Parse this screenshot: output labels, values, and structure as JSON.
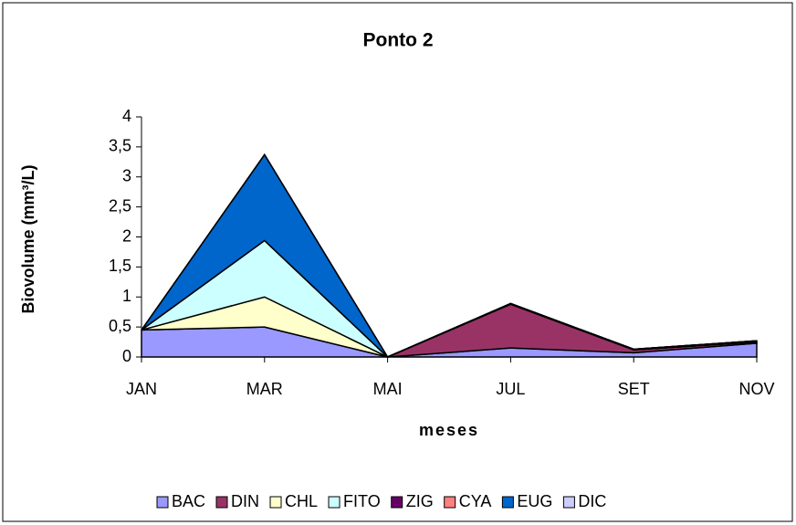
{
  "chart_data": {
    "type": "stacked_area",
    "title": "Ponto 2",
    "x_label": "meses",
    "y_label": "Biovolume (mm³/L)",
    "categories": [
      "JAN",
      "MAR",
      "MAI",
      "JUL",
      "SET",
      "NOV"
    ],
    "series": [
      {
        "name": "BAC",
        "color": "#9999ff",
        "values": [
          0.45,
          0.5,
          0,
          0.15,
          0.07,
          0.23
        ]
      },
      {
        "name": "DIN",
        "color": "#993366",
        "values": [
          0,
          0,
          0,
          0.73,
          0.05,
          0.02
        ]
      },
      {
        "name": "CHL",
        "color": "#ffffcc",
        "values": [
          0,
          0.5,
          0,
          0,
          0,
          0
        ]
      },
      {
        "name": "FITO",
        "color": "#ccffff",
        "values": [
          0,
          0.94,
          0,
          0,
          0,
          0
        ]
      },
      {
        "name": "ZIG",
        "color": "#660066",
        "values": [
          0,
          0,
          0,
          0.01,
          0.01,
          0.02
        ]
      },
      {
        "name": "CYA",
        "color": "#ff8080",
        "values": [
          0,
          0,
          0,
          0,
          0,
          0
        ]
      },
      {
        "name": "EUG",
        "color": "#0066cc",
        "values": [
          0,
          1.43,
          0,
          0,
          0,
          0
        ]
      },
      {
        "name": "DIC",
        "color": "#ccccff",
        "values": [
          0,
          0,
          0,
          0,
          0,
          0
        ]
      }
    ],
    "ylim": [
      0,
      4
    ],
    "yticks": [
      0,
      {
        "value": 0.5,
        "label": "0,5"
      },
      1,
      {
        "value": 1.5,
        "label": "1,5"
      },
      2,
      {
        "value": 2.5,
        "label": "2,5"
      },
      3,
      {
        "value": 3.5,
        "label": "3,5"
      },
      4
    ],
    "legend": "bottom"
  }
}
